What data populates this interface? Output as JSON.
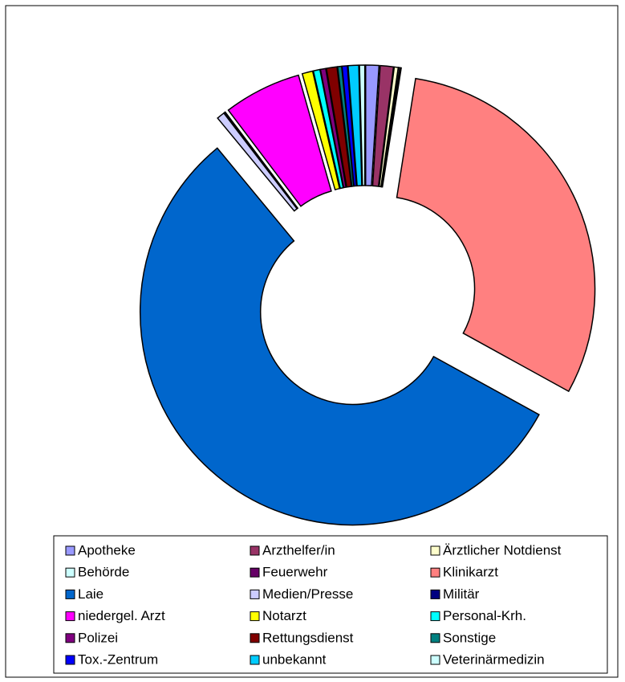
{
  "chart_data": {
    "type": "donut",
    "categories": [
      "Apotheke",
      "Arzthelfer/in",
      "Ärztlicher Notdienst",
      "Behörde",
      "Feuerwehr",
      "Klinikarzt",
      "Laie",
      "Medien/Presse",
      "Militär",
      "niedergel. Arzt",
      "Notarzt",
      "Personal-Krh.",
      "Polizei",
      "Rettungsdienst",
      "Sonstige",
      "Tox.-Zentrum",
      "unbekannt",
      "Veterinärmedizin"
    ],
    "values": [
      1.0,
      1.0,
      0.3,
      0.1,
      0.1,
      30.5,
      56.0,
      0.6,
      0.1,
      5.9,
      0.8,
      0.5,
      0.4,
      0.8,
      0.3,
      0.4,
      0.8,
      0.4
    ],
    "colors": [
      "#9999ff",
      "#993366",
      "#ffffcc",
      "#ccffff",
      "#660066",
      "#ff8080",
      "#0066cc",
      "#ccccff",
      "#000080",
      "#ff00ff",
      "#ffff00",
      "#00ffff",
      "#800080",
      "#800000",
      "#008080",
      "#0000ff",
      "#00ccff",
      "#ccffff"
    ],
    "legend": "bottom"
  }
}
